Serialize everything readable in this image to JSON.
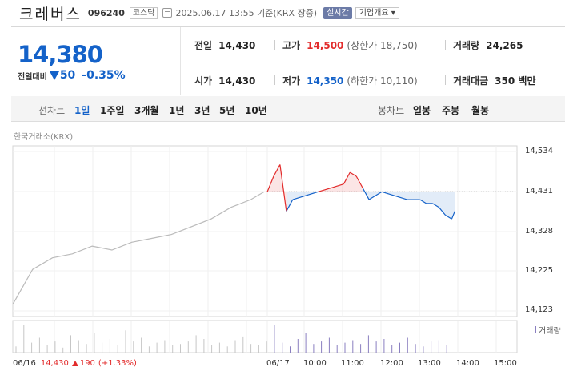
{
  "header": {
    "company": "크레버스",
    "code": "096240",
    "market": "코스닥",
    "timestamp": "2025.06.17 13:55  기준(KRX  장중)",
    "realtime_btn": "실시간",
    "info_btn": "기업개요 ▾"
  },
  "quote": {
    "price": "14,380",
    "change_label": "전일대비",
    "change": "50",
    "change_rate": "-0.35%",
    "prev_close_label": "전일",
    "prev_close": "14,430",
    "open_label": "시가",
    "open": "14,430",
    "high_label": "고가",
    "high": "14,500",
    "upper_limit": "(상한가 18,750)",
    "low_label": "저가",
    "low": "14,350",
    "lower_limit": "(하한가 10,110)",
    "volume_label": "거래량",
    "volume": "24,265",
    "value_label": "거래대금",
    "value": "350 백만"
  },
  "tabs": {
    "line_label": "선차트",
    "line_periods": [
      "1일",
      "1주일",
      "3개월",
      "1년",
      "3년",
      "5년",
      "10년"
    ],
    "selected": "1일",
    "candle_label": "봉차트",
    "candle_periods": [
      "일봉",
      "주봉",
      "월봉"
    ]
  },
  "source": "한국거래소(KRX)",
  "chart_data": {
    "type": "line",
    "ylim": [
      14123,
      14534
    ],
    "yticks": [
      "14,534",
      "14,431",
      "14,328",
      "14,225",
      "14,123"
    ],
    "xticks": [
      "06/16",
      "06/17",
      "10:00",
      "11:00",
      "12:00",
      "13:00",
      "14:00",
      "15:00"
    ],
    "reference": 14430,
    "series": [
      {
        "name": "",
        "x": [
          "06/16 09:00",
          "06/16 09:30",
          "06/16 10:00",
          "06/16 10:30",
          "06/16 11:00",
          "06/16 11:30",
          "06/16 12:00",
          "06/16 12:30",
          "06/16 13:00",
          "06/16 13:30",
          "06/16 14:00",
          "06/16 14:30",
          "06/16 15:00",
          "06/16 15:20"
        ],
        "y": [
          14140,
          14230,
          14260,
          14270,
          14290,
          14280,
          14300,
          14310,
          14320,
          14340,
          14360,
          14390,
          14410,
          14430
        ]
      },
      {
        "name": "",
        "x": [
          "09:00",
          "09:10",
          "09:20",
          "09:30",
          "09:40",
          "10:00",
          "10:20",
          "10:40",
          "11:00",
          "11:10",
          "11:20",
          "11:30",
          "11:40",
          "12:00",
          "12:20",
          "12:40",
          "13:00",
          "13:10",
          "13:20",
          "13:30",
          "13:40",
          "13:50",
          "13:55"
        ],
        "y": [
          14430,
          14470,
          14500,
          14380,
          14410,
          14420,
          14430,
          14440,
          14450,
          14480,
          14470,
          14440,
          14410,
          14430,
          14420,
          14410,
          14410,
          14400,
          14400,
          14390,
          14370,
          14360,
          14380
        ]
      }
    ],
    "volume_label": "거래량",
    "volume": [
      5,
      22,
      8,
      12,
      6,
      9,
      4,
      14,
      10,
      7,
      16,
      8,
      11,
      6,
      18,
      9,
      12,
      5,
      8,
      10,
      6,
      7,
      9,
      14,
      11,
      6,
      8,
      5,
      10,
      13,
      7,
      6,
      9,
      22,
      8,
      5,
      11,
      16,
      7,
      9,
      12,
      6,
      8,
      10,
      7,
      14,
      9,
      11,
      6,
      8,
      12,
      7,
      5,
      9,
      10,
      6
    ]
  },
  "footer": {
    "date": "06/16",
    "price": "14,430",
    "change": "190",
    "rate": "(+1.33%)"
  }
}
